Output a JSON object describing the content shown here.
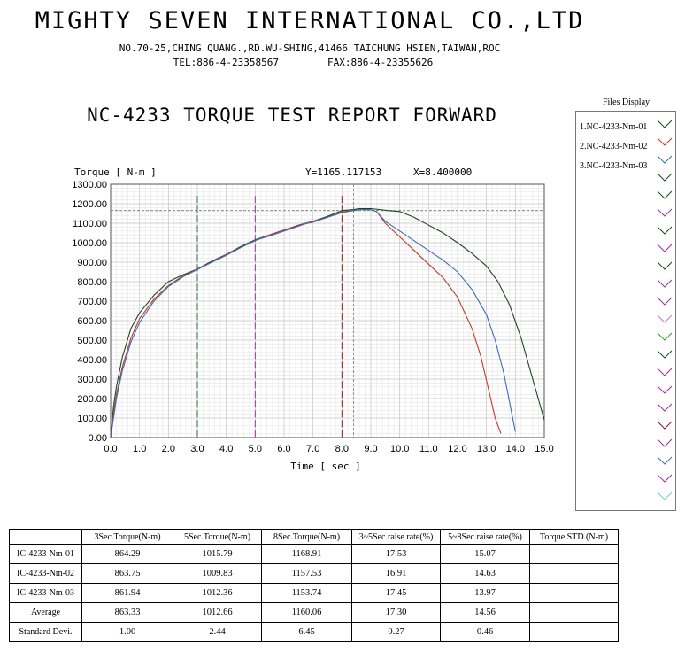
{
  "header": {
    "company": "MIGHTY SEVEN INTERNATIONAL CO.,LTD",
    "address": "NO.70-25,CHING QUANG.,RD.WU-SHING,41466 TAICHUNG HSIEN,TAIWAN,ROC",
    "tel": "TEL:886-4-23358567",
    "fax": "FAX:886-4-23355626"
  },
  "report_title": "NC-4233 TORQUE TEST REPORT FORWARD",
  "cursor": {
    "y_readout": "Y=1165.117153",
    "x_readout": "X=8.400000"
  },
  "files_display": {
    "title": "Files Display",
    "items": [
      "1.NC-4233-Nm-01",
      "2.NC-4233-Nm-02",
      "3.NC-4233-Nm-03"
    ]
  },
  "colors": {
    "series1": "#1c4a1c",
    "series2": "#c0392b",
    "series3": "#3a6fb5",
    "marker3": "#2f6b2f",
    "marker5": "#a02ca0",
    "marker8": "#8b1a1a"
  },
  "chart_data": {
    "type": "line",
    "ylabel": "Torque [ N-m  ]",
    "xlabel": "Time [ sec ]",
    "xlim": [
      0,
      15
    ],
    "ylim": [
      0,
      1300
    ],
    "x_ticks": [
      "0.0",
      "1.0",
      "2.0",
      "3.0",
      "4.0",
      "5.0",
      "6.0",
      "7.0",
      "8.0",
      "9.0",
      "10.0",
      "11.0",
      "12.0",
      "13.0",
      "14.0",
      "15.0"
    ],
    "y_ticks": [
      "0.00",
      "100.00",
      "200.00",
      "300.00",
      "400.00",
      "500.00",
      "600.00",
      "700.00",
      "800.00",
      "900.00",
      "1000.00",
      "1100.00",
      "1200.00",
      "1300.00"
    ],
    "grid": true,
    "vertical_markers": [
      3,
      5,
      8
    ],
    "cursor": {
      "x": 8.4,
      "y": 1165.117153
    },
    "series": [
      {
        "name": "1.NC-4233-Nm-01",
        "x": [
          0,
          0.1,
          0.2,
          0.4,
          0.7,
          1.0,
          1.5,
          2.0,
          2.5,
          3.0,
          3.5,
          4.0,
          4.5,
          5.0,
          5.5,
          6.0,
          6.5,
          7.0,
          7.5,
          8.0,
          8.4,
          8.6,
          9.0,
          9.3,
          9.6,
          10.0,
          10.5,
          11.0,
          11.5,
          12.0,
          12.5,
          13.0,
          13.4,
          13.8,
          14.2,
          14.6,
          15.0
        ],
        "y": [
          0,
          160,
          260,
          410,
          560,
          640,
          730,
          800,
          835,
          865,
          905,
          940,
          980,
          1015,
          1040,
          1065,
          1090,
          1110,
          1135,
          1165,
          1170,
          1175,
          1175,
          1170,
          1165,
          1160,
          1130,
          1090,
          1050,
          1000,
          945,
          880,
          800,
          680,
          510,
          300,
          90
        ]
      },
      {
        "name": "2.NC-4233-Nm-02",
        "x": [
          0,
          0.1,
          0.2,
          0.4,
          0.7,
          1.0,
          1.5,
          2.0,
          2.5,
          3.0,
          3.5,
          4.0,
          4.5,
          5.0,
          5.5,
          6.0,
          6.5,
          7.0,
          7.5,
          8.0,
          8.4,
          8.6,
          9.0,
          9.2,
          9.5,
          10.0,
          10.5,
          11.0,
          11.5,
          12.0,
          12.5,
          12.8,
          13.1,
          13.3,
          13.5
        ],
        "y": [
          0,
          120,
          220,
          360,
          510,
          610,
          710,
          780,
          830,
          864,
          900,
          940,
          975,
          1010,
          1040,
          1065,
          1090,
          1105,
          1130,
          1158,
          1165,
          1170,
          1170,
          1160,
          1100,
          1030,
          960,
          890,
          820,
          720,
          560,
          420,
          230,
          100,
          20
        ]
      },
      {
        "name": "3.NC-4233-Nm-03",
        "x": [
          0,
          0.1,
          0.2,
          0.4,
          0.7,
          1.0,
          1.5,
          2.0,
          2.5,
          3.0,
          3.5,
          4.0,
          4.5,
          5.0,
          5.5,
          6.0,
          6.5,
          7.0,
          7.5,
          8.0,
          8.4,
          8.6,
          9.0,
          9.2,
          9.5,
          10.0,
          10.5,
          11.0,
          11.5,
          12.0,
          12.5,
          13.0,
          13.3,
          13.6,
          13.8,
          14.0
        ],
        "y": [
          0,
          100,
          200,
          340,
          490,
          590,
          700,
          775,
          825,
          862,
          900,
          935,
          975,
          1012,
          1035,
          1060,
          1085,
          1110,
          1130,
          1154,
          1165,
          1170,
          1170,
          1160,
          1110,
          1060,
          1010,
          960,
          910,
          850,
          760,
          630,
          500,
          330,
          180,
          30
        ]
      }
    ]
  },
  "table": {
    "headers": [
      "",
      "3Sec.Torque(N-m)",
      "5Sec.Torque(N-m)",
      "8Sec.Torque(N-m)",
      "3~5Sec.raise rate(%)",
      "5~8Sec.raise rate(%)",
      "Torque STD.(N-m)"
    ],
    "rows": [
      [
        "IC-4233-Nm-01",
        "864.29",
        "1015.79",
        "1168.91",
        "17.53",
        "15.07",
        ""
      ],
      [
        "IC-4233-Nm-02",
        "863.75",
        "1009.83",
        "1157.53",
        "16.91",
        "14.63",
        ""
      ],
      [
        "IC-4233-Nm-03",
        "861.94",
        "1012.36",
        "1153.74",
        "17.45",
        "13.97",
        ""
      ],
      [
        "Average",
        "863.33",
        "1012.66",
        "1160.06",
        "17.30",
        "14.56",
        ""
      ],
      [
        "Standard Devi.",
        "1.00",
        "2.44",
        "6.45",
        "0.27",
        "0.46",
        ""
      ]
    ]
  }
}
